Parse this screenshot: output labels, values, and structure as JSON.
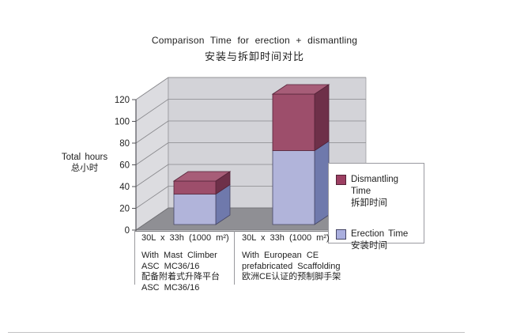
{
  "chart_data": {
    "type": "bar",
    "stacked": true,
    "style": "3d",
    "title": "Comparison Time for erection + dismantling",
    "title_zh": "安装与拆卸时间对比",
    "ylabel": "Total hours",
    "ylabel_zh": "总小时",
    "ylim": [
      0,
      120
    ],
    "yticks": [
      0,
      20,
      40,
      60,
      80,
      100,
      120
    ],
    "grid": true,
    "legend_position": "right",
    "categories": [
      "30L x 33h (1000 m²)",
      "30L x 33h (1000 m²)"
    ],
    "category_descriptions": [
      [
        "With Mast Climber",
        "ASC MC36/16",
        "配备附着式升降平台",
        "ASC MC36/16"
      ],
      [
        "With European CE",
        "prefabricated Scaffolding",
        "欧洲CE认证的预制脚手架"
      ]
    ],
    "series": [
      {
        "name": "Erection Time",
        "name_zh": "安装时间",
        "values": [
          28,
          68
        ],
        "color_front": "#b1b4da",
        "color_side": "#6f79ac",
        "color_top": "#c3c5e4",
        "color_stroke": "#474766",
        "legend_swatch": "#a9aede"
      },
      {
        "name": "Dismantling Time",
        "name_zh": "拆卸时间",
        "values": [
          12,
          52
        ],
        "color_front": "#9d4e6b",
        "color_side": "#6e3049",
        "color_top": "#a75d78",
        "color_stroke": "#542338",
        "legend_swatch": "#9c3f62"
      }
    ],
    "colors": {
      "wall_left": "#dcdce0",
      "wall_back": "#d3d3d8",
      "floor": "#8f8f94",
      "gridline": "#88888c",
      "axis": "#55555a",
      "text": "#1f1f1f"
    }
  }
}
